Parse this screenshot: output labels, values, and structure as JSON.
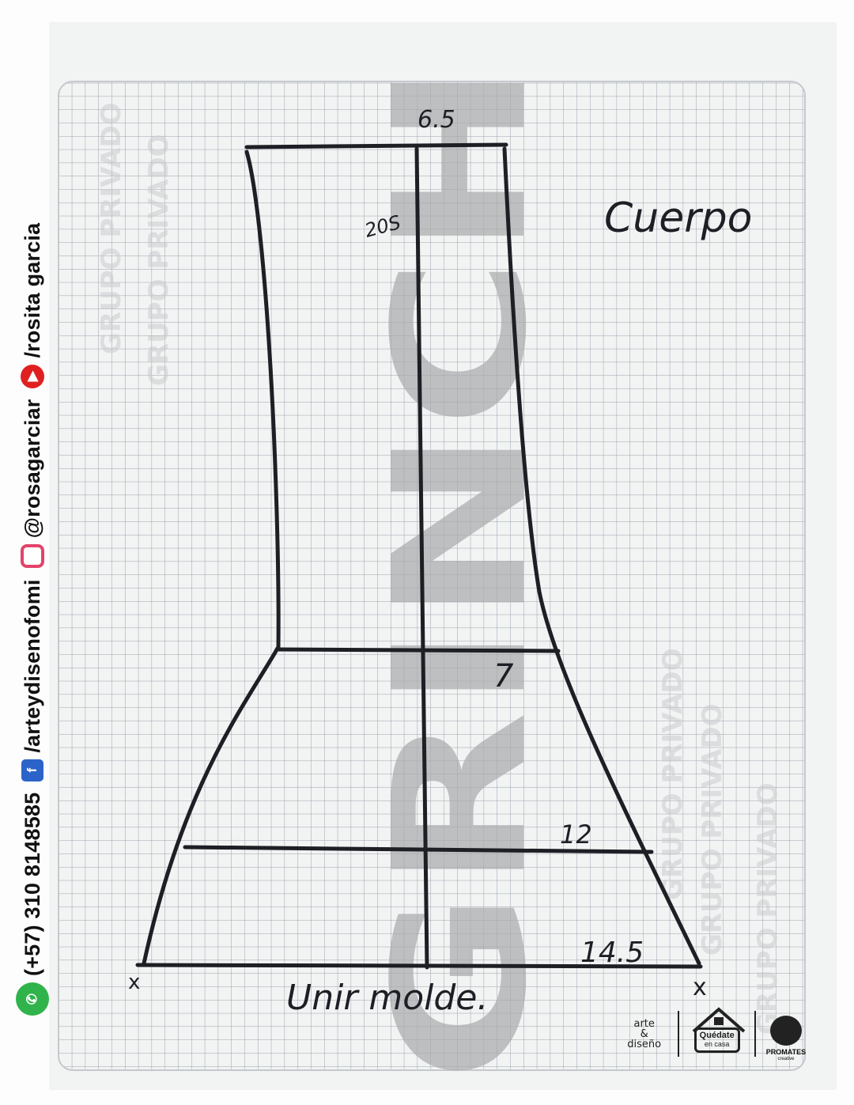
{
  "sidebar": {
    "phone": "(+57) 310 8148585",
    "facebook": "/arteydisenofomi",
    "instagram": "@rosagarciar",
    "youtube": "/rosita garcia",
    "icons": [
      "whatsapp-icon",
      "facebook-icon",
      "instagram-icon",
      "youtube-icon"
    ]
  },
  "pattern": {
    "title": "Cuerpo",
    "top_measure": "6.5",
    "top_side_note": "20S",
    "mid_measure": "7",
    "lower_measure": "12",
    "bottom_measure": "14.5",
    "left_mark": "x",
    "right_mark": "x",
    "instruction": "Unir molde."
  },
  "watermark": {
    "vertical_word": "GRINCH",
    "repeated_text": "GRUPO PRIVADO"
  },
  "footer_logos": {
    "arte": {
      "line1": "arte",
      "line2": "&",
      "line3": "diseño"
    },
    "quedate": {
      "line1": "Quédate",
      "line2": "en casa"
    },
    "promates": {
      "line1": "PROMATES",
      "line2": "creative"
    }
  },
  "colors": {
    "ink": "#1d1f25",
    "grid": "#9aa3ad",
    "paper": "#f2f3f3",
    "watermark": "#b5b5b5",
    "whatsapp": "#2fb34a",
    "facebook": "#2b63c9",
    "instagram": "#e2446a",
    "youtube": "#e02020"
  }
}
